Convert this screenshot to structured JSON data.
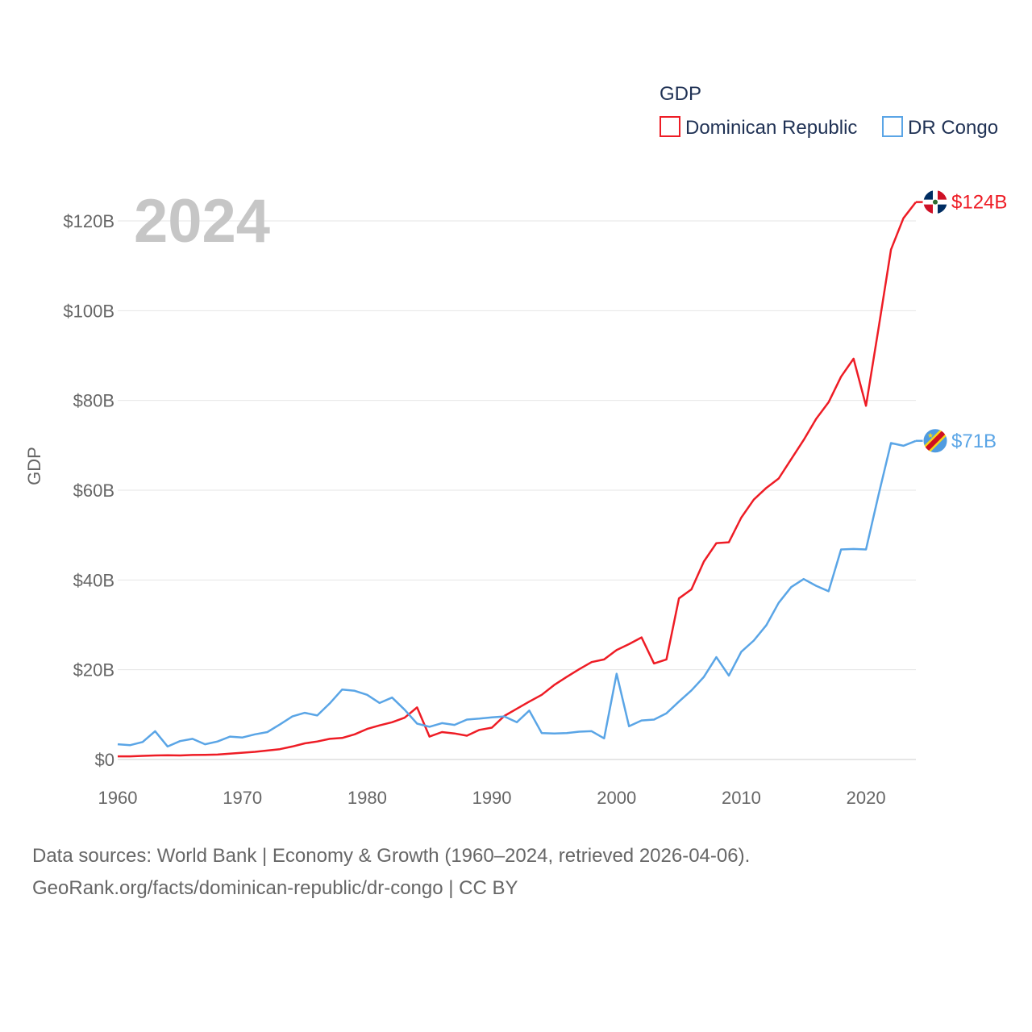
{
  "chart_data": {
    "type": "line",
    "year_label": "2024",
    "ylabel": "GDP",
    "xlim": [
      1960,
      2024
    ],
    "ylim": [
      0,
      120
    ],
    "xticks": [
      1960,
      1970,
      1980,
      1990,
      2000,
      2010,
      2020
    ],
    "xtick_labels": [
      "1960",
      "1970",
      "1980",
      "1990",
      "2000",
      "2010",
      "2020"
    ],
    "yticks": [
      0,
      20,
      40,
      60,
      80,
      100,
      120
    ],
    "ytick_labels": [
      "$0",
      "$20B",
      "$40B",
      "$60B",
      "$80B",
      "$100B",
      "$120B"
    ],
    "legend": {
      "title": "GDP",
      "position": "top-right"
    },
    "series": [
      {
        "name": "Dominican Republic",
        "color": "#ee1c25",
        "end_label": "$124B",
        "icon": "dominican-republic-flag-icon",
        "x": [
          1960,
          1961,
          1962,
          1963,
          1964,
          1965,
          1966,
          1967,
          1968,
          1969,
          1970,
          1971,
          1972,
          1973,
          1974,
          1975,
          1976,
          1977,
          1978,
          1979,
          1980,
          1981,
          1982,
          1983,
          1984,
          1985,
          1986,
          1987,
          1988,
          1989,
          1990,
          1991,
          1992,
          1993,
          1994,
          1995,
          1996,
          1997,
          1998,
          1999,
          2000,
          2001,
          2002,
          2003,
          2004,
          2005,
          2006,
          2007,
          2008,
          2009,
          2010,
          2011,
          2012,
          2013,
          2014,
          2015,
          2016,
          2017,
          2018,
          2019,
          2020,
          2021,
          2022,
          2023,
          2024
        ],
        "values": [
          0.7,
          0.7,
          0.8,
          0.9,
          0.95,
          0.9,
          1.0,
          1.05,
          1.1,
          1.3,
          1.5,
          1.7,
          2.0,
          2.3,
          2.9,
          3.6,
          4.0,
          4.6,
          4.8,
          5.6,
          6.8,
          7.6,
          8.3,
          9.3,
          11.6,
          5.1,
          6.1,
          5.8,
          5.3,
          6.6,
          7.1,
          9.7,
          11.3,
          12.9,
          14.4,
          16.6,
          18.4,
          20.1,
          21.7,
          22.3,
          24.4,
          25.7,
          27.2,
          21.4,
          22.3,
          35.9,
          37.9,
          44.1,
          48.2,
          48.4,
          53.9,
          57.9,
          60.5,
          62.6,
          66.9,
          71.2,
          75.9,
          79.6,
          85.3,
          89.3,
          78.8,
          96.0,
          113.6,
          120.6,
          124.2
        ]
      },
      {
        "name": "DR Congo",
        "color": "#5aa5e6",
        "end_label": "$71B",
        "icon": "dr-congo-flag-icon",
        "x": [
          1960,
          1961,
          1962,
          1963,
          1964,
          1965,
          1966,
          1967,
          1968,
          1969,
          1970,
          1971,
          1972,
          1973,
          1974,
          1975,
          1976,
          1977,
          1978,
          1979,
          1980,
          1981,
          1982,
          1983,
          1984,
          1985,
          1986,
          1987,
          1988,
          1989,
          1990,
          1991,
          1992,
          1993,
          1994,
          1995,
          1996,
          1997,
          1998,
          1999,
          2000,
          2001,
          2002,
          2003,
          2004,
          2005,
          2006,
          2007,
          2008,
          2009,
          2010,
          2011,
          2012,
          2013,
          2014,
          2015,
          2016,
          2017,
          2018,
          2019,
          2020,
          2021,
          2022,
          2023,
          2024
        ],
        "values": [
          3.4,
          3.2,
          3.9,
          6.3,
          2.9,
          4.1,
          4.6,
          3.4,
          4.0,
          5.1,
          4.9,
          5.6,
          6.1,
          7.8,
          9.6,
          10.4,
          9.8,
          12.5,
          15.6,
          15.3,
          14.4,
          12.6,
          13.8,
          11.1,
          8.0,
          7.3,
          8.1,
          7.7,
          8.9,
          9.1,
          9.4,
          9.6,
          8.3,
          10.9,
          5.9,
          5.8,
          5.9,
          6.2,
          6.3,
          4.7,
          19.1,
          7.4,
          8.7,
          8.9,
          10.3,
          12.9,
          15.4,
          18.4,
          22.8,
          18.7,
          24.0,
          26.5,
          29.9,
          34.9,
          38.4,
          40.2,
          38.7,
          37.5,
          46.8,
          46.9,
          46.8,
          58.9,
          70.5,
          69.9,
          71.0
        ]
      }
    ]
  },
  "source": {
    "line1": "Data sources: World Bank | Economy & Growth (1960–2024, retrieved 2026-04-06).",
    "line2": "GeoRank.org/facts/dominican-republic/dr-congo | CC BY"
  }
}
